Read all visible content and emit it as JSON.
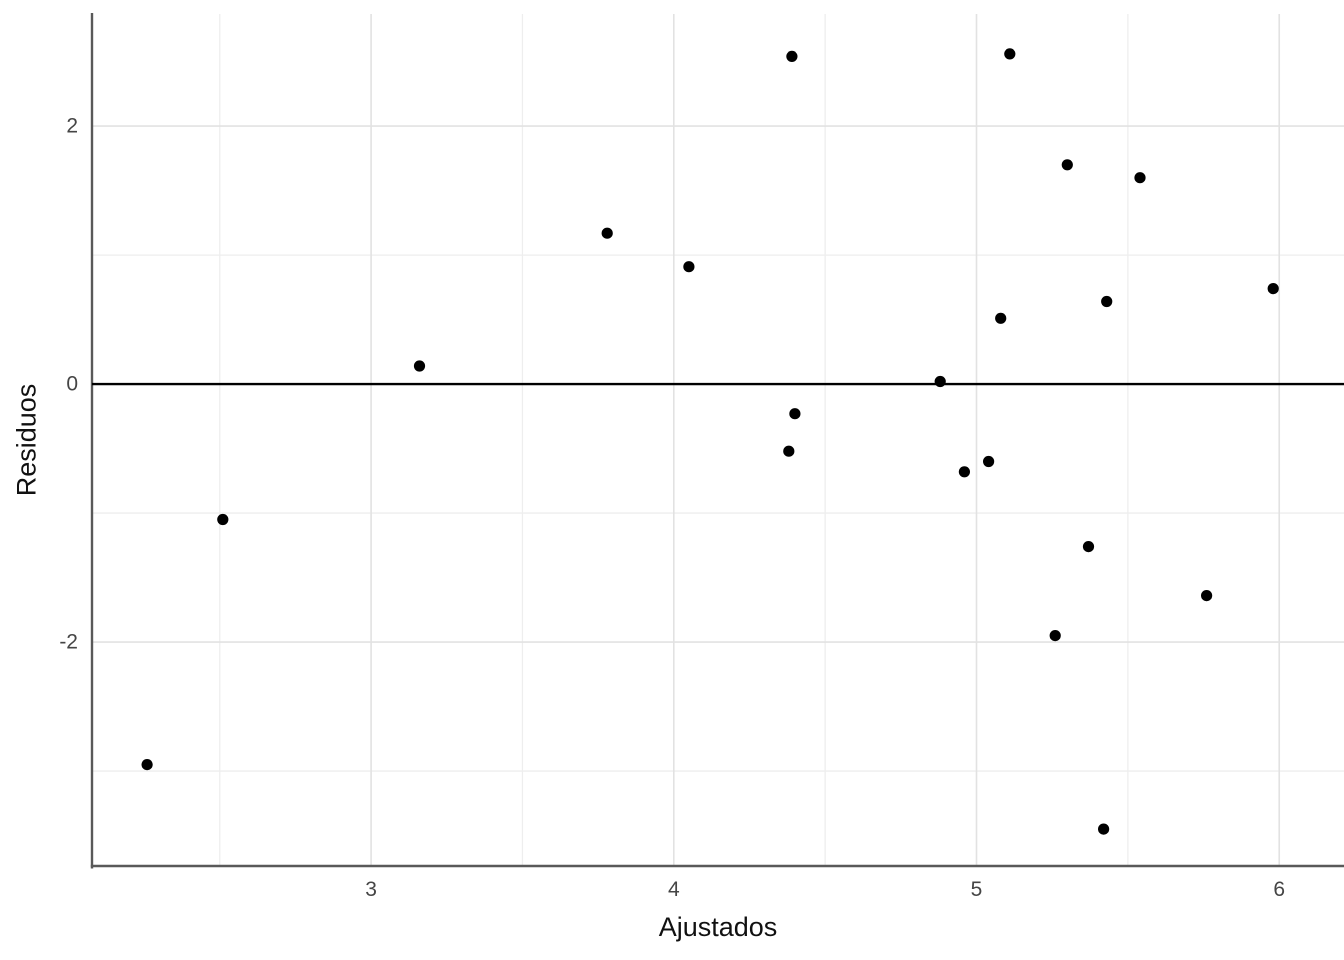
{
  "chart_data": {
    "type": "scatter",
    "title": "",
    "xlabel": "Ajustados",
    "ylabel": "Residuos",
    "xlim": [
      2.078,
      6.214
    ],
    "ylim": [
      -3.736,
      2.869
    ],
    "x_tick_values": [
      3,
      4,
      5,
      6
    ],
    "x_tick_labels": [
      "3",
      "4",
      "5",
      "6"
    ],
    "y_tick_values": [
      -2,
      0,
      2
    ],
    "y_tick_labels": [
      "-2",
      "0",
      "2"
    ],
    "x_minor_ticks": [
      2.5,
      3.5,
      4.5,
      5.5
    ],
    "y_minor_ticks": [
      -3,
      -1,
      1
    ],
    "grid": true,
    "legend_position": "none",
    "reference_line_y": 0,
    "points": [
      [
        2.26,
        -2.95
      ],
      [
        2.51,
        -1.05
      ],
      [
        3.16,
        0.14
      ],
      [
        3.78,
        1.17
      ],
      [
        4.05,
        0.91
      ],
      [
        4.39,
        2.54
      ],
      [
        4.4,
        -0.23
      ],
      [
        4.38,
        -0.52
      ],
      [
        4.88,
        0.02
      ],
      [
        4.96,
        -0.68
      ],
      [
        5.04,
        -0.6
      ],
      [
        5.08,
        0.51
      ],
      [
        5.11,
        2.56
      ],
      [
        5.3,
        1.7
      ],
      [
        5.26,
        -1.95
      ],
      [
        5.37,
        -1.26
      ],
      [
        5.42,
        -3.45
      ],
      [
        5.43,
        0.64
      ],
      [
        5.54,
        1.6
      ],
      [
        5.76,
        -1.64
      ],
      [
        5.98,
        0.74
      ]
    ]
  },
  "colors": {
    "background": "#ffffff",
    "point": "#000000",
    "axis_line": "#595959",
    "grid_major": "#e2e2e2",
    "grid_minor": "#eeeeee",
    "reference_line": "#000000",
    "tick_label": "#454545",
    "axis_title": "#111111"
  }
}
